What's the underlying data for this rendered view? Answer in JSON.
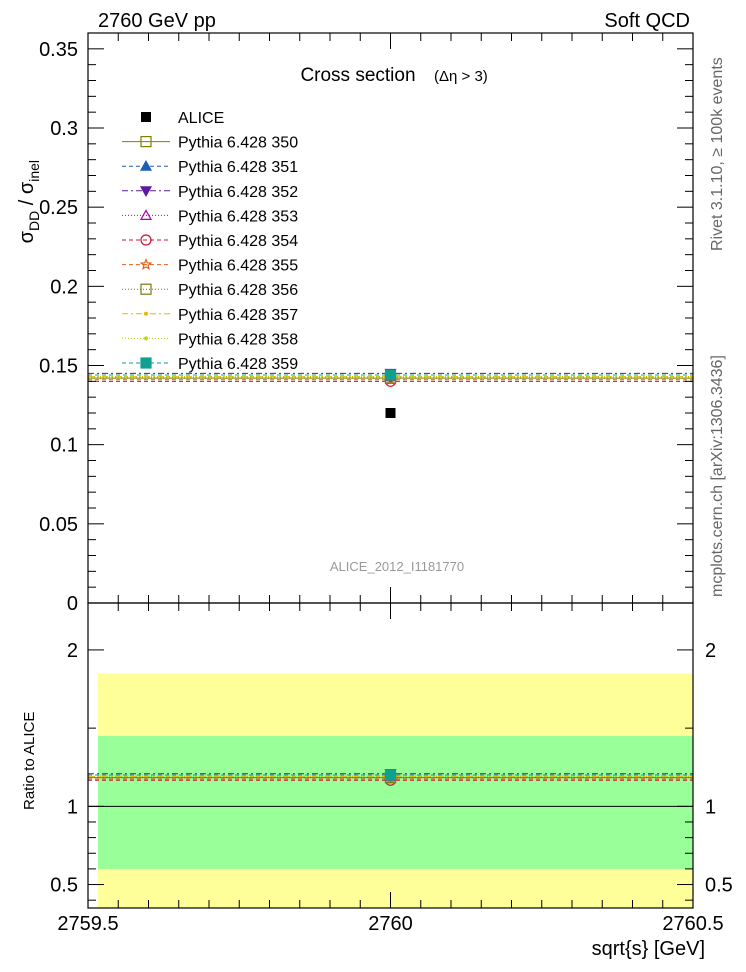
{
  "header": {
    "left": "2760 GeV pp",
    "right": "Soft QCD"
  },
  "side_labels": {
    "rivet": "Rivet 3.1.10, ≥ 100k events",
    "mcplots": "mcplots.cern.ch [arXiv:1306.3436]"
  },
  "chart_data": {
    "type": "scatter",
    "title": "Cross section",
    "title_sub": "(Δη > 3)",
    "analysis_label": "ALICE_2012_I1181770",
    "ylabel_main": "σ",
    "ylabel_sub1": "DD",
    "ylabel_sep": " / σ",
    "ylabel_sub2": "inel",
    "xlabel": "sqrt{s} [GeV]",
    "ratio_ylabel": "Ratio to ALICE",
    "xlim": [
      2759.5,
      2760.5
    ],
    "ylim": [
      0,
      0.36
    ],
    "ratio_ylim": [
      0.35,
      2.3
    ],
    "x_ticks": [
      "2759.5",
      "2760",
      "2760.5"
    ],
    "y_ticks": [
      "0",
      "0.05",
      "0.1",
      "0.15",
      "0.2",
      "0.25",
      "0.3",
      "0.35"
    ],
    "ratio_ticks": [
      "0.5",
      "1",
      "2"
    ],
    "data": {
      "name": "ALICE",
      "x": 2760,
      "y": 0.12,
      "ratio_band_inner": [
        0.6,
        1.45
      ],
      "ratio_band_outer": [
        0.35,
        1.85
      ]
    },
    "series": [
      {
        "name": "Pythia 6.428 350",
        "value": 0.142,
        "color": "#808000",
        "marker": "open-square",
        "dash": ""
      },
      {
        "name": "Pythia 6.428 351",
        "value": 0.144,
        "color": "#1a5fb4",
        "marker": "filled-triangle-up",
        "dash": "4,3"
      },
      {
        "name": "Pythia 6.428 352",
        "value": 0.145,
        "color": "#5a1aa0",
        "marker": "filled-triangle-down",
        "dash": "6,3,2,3"
      },
      {
        "name": "Pythia 6.428 353",
        "value": 0.143,
        "color": "#b000b0",
        "marker": "open-triangle-up",
        "dash": "1,2"
      },
      {
        "name": "Pythia 6.428 354",
        "value": 0.14,
        "color": "#d01030",
        "marker": "open-circle",
        "dash": "4,3"
      },
      {
        "name": "Pythia 6.428 355",
        "value": 0.141,
        "color": "#e0601a",
        "marker": "star",
        "dash": "4,3"
      },
      {
        "name": "Pythia 6.428 356",
        "value": 0.142,
        "color": "#7a7a10",
        "marker": "open-square",
        "dash": "1,2"
      },
      {
        "name": "Pythia 6.428 357",
        "value": 0.143,
        "color": "#e8b800",
        "marker": "dot",
        "dash": "6,3,2,3"
      },
      {
        "name": "Pythia 6.428 358",
        "value": 0.143,
        "color": "#b8e000",
        "marker": "dot",
        "dash": "1,2"
      },
      {
        "name": "Pythia 6.428 359",
        "value": 0.144,
        "color": "#10a090",
        "marker": "filled-square",
        "dash": "4,3"
      }
    ]
  }
}
